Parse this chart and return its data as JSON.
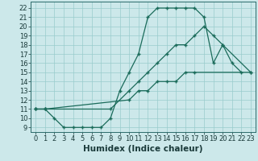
{
  "xlabel": "Humidex (Indice chaleur)",
  "bg_color": "#cce8ea",
  "grid_color": "#99cccc",
  "line_color": "#1a6b5a",
  "xlim": [
    -0.5,
    23.5
  ],
  "ylim": [
    8.5,
    22.7
  ],
  "xticks": [
    0,
    1,
    2,
    3,
    4,
    5,
    6,
    7,
    8,
    9,
    10,
    11,
    12,
    13,
    14,
    15,
    16,
    17,
    18,
    19,
    20,
    21,
    22,
    23
  ],
  "yticks": [
    9,
    10,
    11,
    12,
    13,
    14,
    15,
    16,
    17,
    18,
    19,
    20,
    21,
    22
  ],
  "line1_x": [
    0,
    1,
    2,
    3,
    4,
    5,
    6,
    7,
    8,
    9,
    10,
    11,
    12,
    13,
    14,
    15,
    16,
    17,
    18,
    19,
    20,
    21,
    22
  ],
  "line1_y": [
    11,
    11,
    10,
    9,
    9,
    9,
    9,
    9,
    10,
    13,
    15,
    17,
    21,
    22,
    22,
    22,
    22,
    22,
    21,
    16,
    18,
    16,
    15
  ],
  "line2_x": [
    0,
    1,
    8,
    10,
    11,
    12,
    13,
    14,
    15,
    16,
    17,
    18,
    19,
    20,
    23
  ],
  "line2_y": [
    11,
    11,
    11,
    13,
    14,
    15,
    16,
    17,
    18,
    18,
    19,
    20,
    19,
    18,
    15
  ],
  "line3_x": [
    0,
    1,
    10,
    11,
    12,
    13,
    14,
    15,
    16,
    17,
    23
  ],
  "line3_y": [
    11,
    11,
    12,
    13,
    13,
    14,
    14,
    14,
    15,
    15,
    15
  ],
  "xlabel_fontsize": 7.5,
  "tick_fontsize": 6.0
}
